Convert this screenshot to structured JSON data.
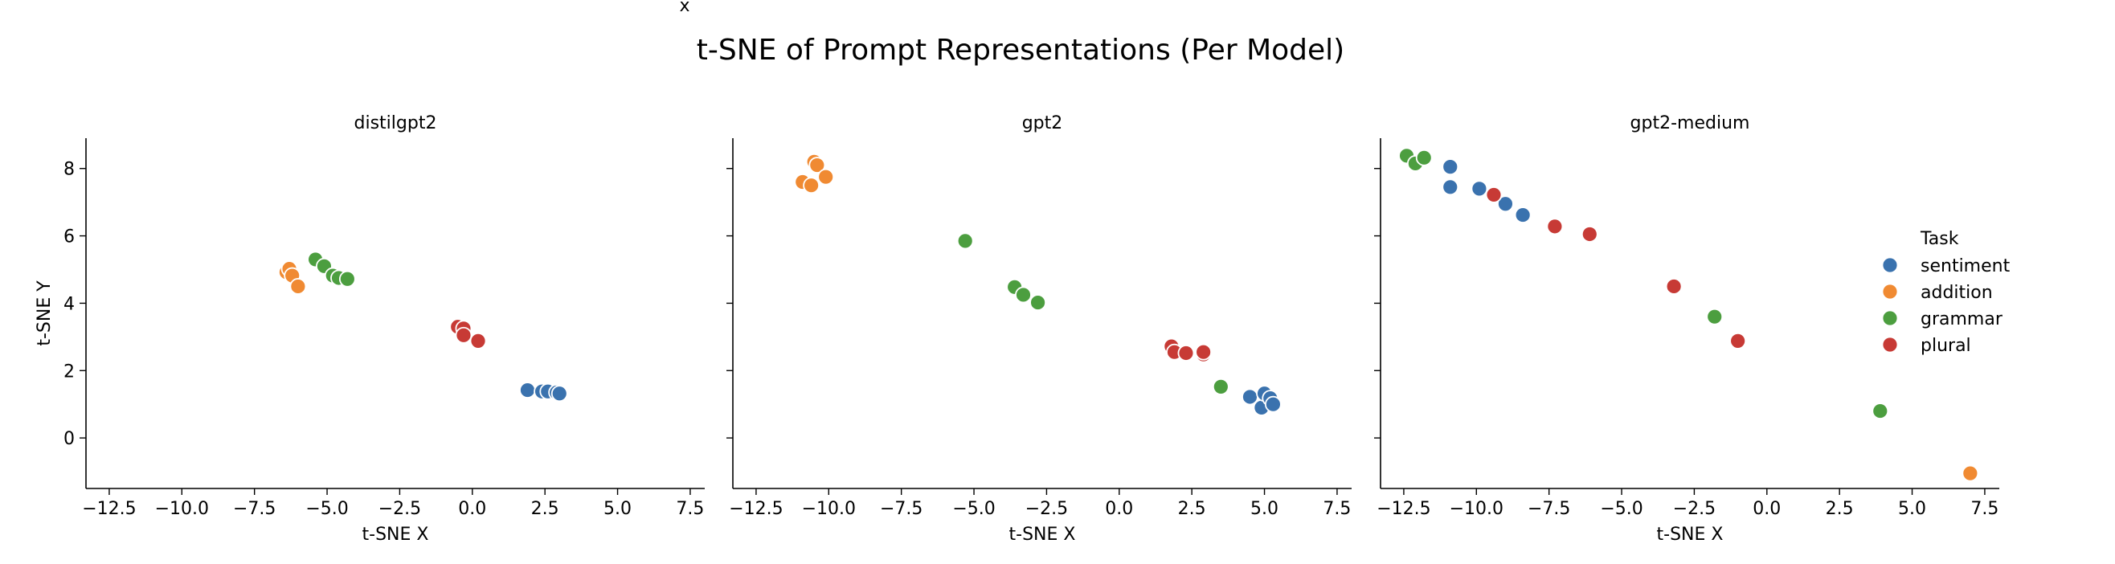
{
  "stray_text": "x",
  "title": "t-SNE of Prompt Representations (Per Model)",
  "xlabel": "t-SNE X",
  "ylabel": "t-SNE Y",
  "legend": {
    "title": "Task",
    "items": [
      {
        "label": "sentiment",
        "color": "#3a72ae"
      },
      {
        "label": "addition",
        "color": "#f08a32"
      },
      {
        "label": "grammar",
        "color": "#4c9e3f"
      },
      {
        "label": "plural",
        "color": "#c73a35"
      }
    ]
  },
  "chart_data": {
    "type": "scatter",
    "xlim": [
      -13.3,
      8.0
    ],
    "ylim": [
      -1.5,
      8.9
    ],
    "xticks": [
      -12.5,
      -10.0,
      -7.5,
      -5.0,
      -2.5,
      0.0,
      2.5,
      5.0,
      7.5
    ],
    "xtick_labels": [
      "−12.5",
      "−10.0",
      "−7.5",
      "−5.0",
      "−2.5",
      "0.0",
      "2.5",
      "5.0",
      "7.5"
    ],
    "yticks": [
      0,
      2,
      4,
      6,
      8
    ],
    "ytick_labels": [
      "0",
      "2",
      "4",
      "6",
      "8"
    ],
    "shared_y": true,
    "grid": false,
    "legend_position": "right",
    "panels": [
      {
        "title": "distilgpt2",
        "series": [
          {
            "name": "sentiment",
            "points": [
              [
                1.9,
                1.42
              ],
              [
                2.4,
                1.38
              ],
              [
                2.6,
                1.38
              ],
              [
                2.9,
                1.35
              ],
              [
                3.0,
                1.32
              ]
            ]
          },
          {
            "name": "addition",
            "points": [
              [
                -6.4,
                4.92
              ],
              [
                -6.3,
                5.02
              ],
              [
                -6.2,
                4.82
              ],
              [
                -6.0,
                4.5
              ]
            ]
          },
          {
            "name": "grammar",
            "points": [
              [
                -5.4,
                5.3
              ],
              [
                -5.1,
                5.1
              ],
              [
                -4.8,
                4.82
              ],
              [
                -4.6,
                4.75
              ],
              [
                -4.3,
                4.72
              ]
            ]
          },
          {
            "name": "plural",
            "points": [
              [
                -0.5,
                3.3
              ],
              [
                -0.3,
                3.25
              ],
              [
                -0.3,
                3.05
              ],
              [
                0.2,
                2.88
              ]
            ]
          }
        ]
      },
      {
        "title": "gpt2",
        "series": [
          {
            "name": "sentiment",
            "points": [
              [
                4.5,
                1.22
              ],
              [
                4.9,
                0.9
              ],
              [
                5.0,
                1.32
              ],
              [
                5.2,
                1.18
              ],
              [
                5.3,
                1.0
              ]
            ]
          },
          {
            "name": "addition",
            "points": [
              [
                -10.9,
                7.6
              ],
              [
                -10.6,
                7.5
              ],
              [
                -10.5,
                8.2
              ],
              [
                -10.4,
                8.1
              ],
              [
                -10.1,
                7.75
              ]
            ]
          },
          {
            "name": "grammar",
            "points": [
              [
                -5.3,
                5.85
              ],
              [
                -3.6,
                4.48
              ],
              [
                -3.3,
                4.25
              ],
              [
                -2.8,
                4.02
              ],
              [
                3.5,
                1.52
              ]
            ]
          },
          {
            "name": "plural",
            "points": [
              [
                1.8,
                2.72
              ],
              [
                1.9,
                2.55
              ],
              [
                2.3,
                2.52
              ],
              [
                2.9,
                2.48
              ],
              [
                2.9,
                2.55
              ]
            ]
          }
        ]
      },
      {
        "title": "gpt2-medium",
        "series": [
          {
            "name": "sentiment",
            "points": [
              [
                -10.9,
                8.05
              ],
              [
                -10.9,
                7.45
              ],
              [
                -9.9,
                7.4
              ],
              [
                -9.0,
                6.95
              ],
              [
                -8.4,
                6.62
              ]
            ]
          },
          {
            "name": "addition",
            "points": [
              [
                7.0,
                -1.05
              ]
            ]
          },
          {
            "name": "grammar",
            "points": [
              [
                -12.4,
                8.38
              ],
              [
                -12.1,
                8.15
              ],
              [
                -11.8,
                8.32
              ],
              [
                -1.8,
                3.6
              ],
              [
                3.9,
                0.8
              ]
            ]
          },
          {
            "name": "plural",
            "points": [
              [
                -9.4,
                7.22
              ],
              [
                -7.3,
                6.28
              ],
              [
                -6.1,
                6.05
              ],
              [
                -3.2,
                4.5
              ],
              [
                -1.0,
                2.88
              ]
            ]
          }
        ]
      }
    ]
  }
}
